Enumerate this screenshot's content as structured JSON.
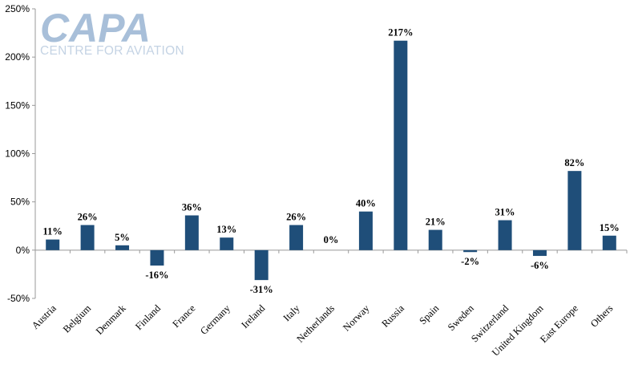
{
  "logo": {
    "name": "CAPA",
    "tagline": "CENTRE FOR AVIATION"
  },
  "chart_data": {
    "type": "bar",
    "categories": [
      "Austria",
      "Belgium",
      "Denmark",
      "Finland",
      "France",
      "Germany",
      "Ireland",
      "Italy",
      "Netherlands",
      "Norway",
      "Russia",
      "Spain",
      "Sweden",
      "Switzerland",
      "United Kingdom",
      "East Europe",
      "Others"
    ],
    "values": [
      11,
      26,
      5,
      -16,
      36,
      13,
      -31,
      26,
      0,
      40,
      217,
      21,
      -2,
      31,
      -6,
      82,
      15
    ],
    "data_labels": [
      "11%",
      "26%",
      "5%",
      "-16%",
      "36%",
      "13%",
      "-31%",
      "26%",
      "0%",
      "40%",
      "217%",
      "21%",
      "-2%",
      "31%",
      "-6%",
      "82%",
      "15%"
    ],
    "ylim": [
      -50,
      250
    ],
    "yticks": [
      -50,
      0,
      50,
      100,
      150,
      200,
      250
    ],
    "ytick_labels": [
      "-50%",
      "0%",
      "50%",
      "100%",
      "150%",
      "200%",
      "250%"
    ],
    "bar_color": "#1f4e79",
    "grid": false,
    "legend": "none"
  }
}
